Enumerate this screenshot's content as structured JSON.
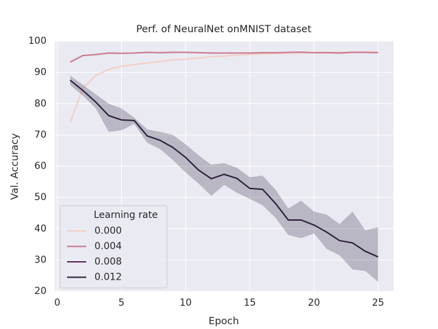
{
  "chart_data": {
    "type": "line",
    "title": "Perf. of NeuralNet onMNIST dataset",
    "x_label": "Epoch",
    "y_label": "Val. Accuracy",
    "legend_title": "Learning rate",
    "legend": "lower left",
    "grid": true,
    "x": [
      1,
      2,
      3,
      4,
      5,
      6,
      7,
      8,
      9,
      10,
      11,
      12,
      13,
      14,
      15,
      16,
      17,
      18,
      19,
      20,
      21,
      22,
      23,
      24,
      25
    ],
    "xlim": [
      -0.2,
      26.2
    ],
    "xticks": [
      0,
      5,
      10,
      15,
      20,
      25
    ],
    "ylim": [
      20,
      100
    ],
    "yticks": [
      20,
      30,
      40,
      50,
      60,
      70,
      80,
      90,
      100
    ],
    "series": [
      {
        "name": "0.000",
        "color": "#f1cfc6",
        "values": [
          74,
          85,
          89,
          91,
          92,
          92.5,
          93,
          93.5,
          94,
          94.2,
          94.6,
          95,
          95.2,
          95.5,
          95.7,
          95.9,
          96,
          96.1,
          96.2,
          96.3,
          96.4,
          96.4,
          96.5,
          96.5,
          96.6
        ]
      },
      {
        "name": "0.004",
        "color": "#c9788c",
        "values": [
          93.3,
          95.4,
          95.7,
          96.2,
          96.1,
          96.2,
          96.4,
          96.3,
          96.4,
          96.4,
          96.3,
          96.2,
          96.2,
          96.2,
          96.2,
          96.3,
          96.3,
          96.4,
          96.5,
          96.3,
          96.3,
          96.2,
          96.4,
          96.4,
          96.3
        ]
      },
      {
        "name": "0.008",
        "color": "#5a2e5e",
        "values": [
          null,
          null,
          null,
          null,
          null,
          null,
          null,
          null,
          null,
          null,
          null,
          null,
          null,
          null,
          null,
          null,
          null,
          null,
          null,
          null,
          null,
          null,
          null,
          null,
          null
        ]
      },
      {
        "name": "0.012",
        "color": "#2c1e3d",
        "values": [
          87.5,
          84.2,
          80.5,
          76.2,
          74.8,
          74.6,
          69.7,
          68.3,
          66.0,
          62.8,
          58.8,
          56.0,
          57.4,
          56.1,
          52.9,
          52.6,
          48.1,
          42.8,
          42.8,
          41.2,
          38.9,
          36.2,
          35.5,
          32.8,
          31.0
        ],
        "upper": [
          89,
          86,
          83,
          80,
          78.5,
          75.5,
          71.8,
          71,
          70,
          67,
          63.5,
          60.5,
          61,
          59.5,
          56.5,
          57,
          52.5,
          46.5,
          49,
          45.5,
          44.5,
          41.5,
          45.5,
          39.5,
          40.5
        ],
        "lower": [
          86,
          82.5,
          78.5,
          71,
          71.5,
          73.5,
          67.5,
          65.5,
          62,
          58,
          54.5,
          50.5,
          54,
          51.5,
          49.5,
          47.5,
          43.5,
          38,
          37,
          38.5,
          33.5,
          31.5,
          27,
          26.5,
          23
        ]
      }
    ]
  }
}
